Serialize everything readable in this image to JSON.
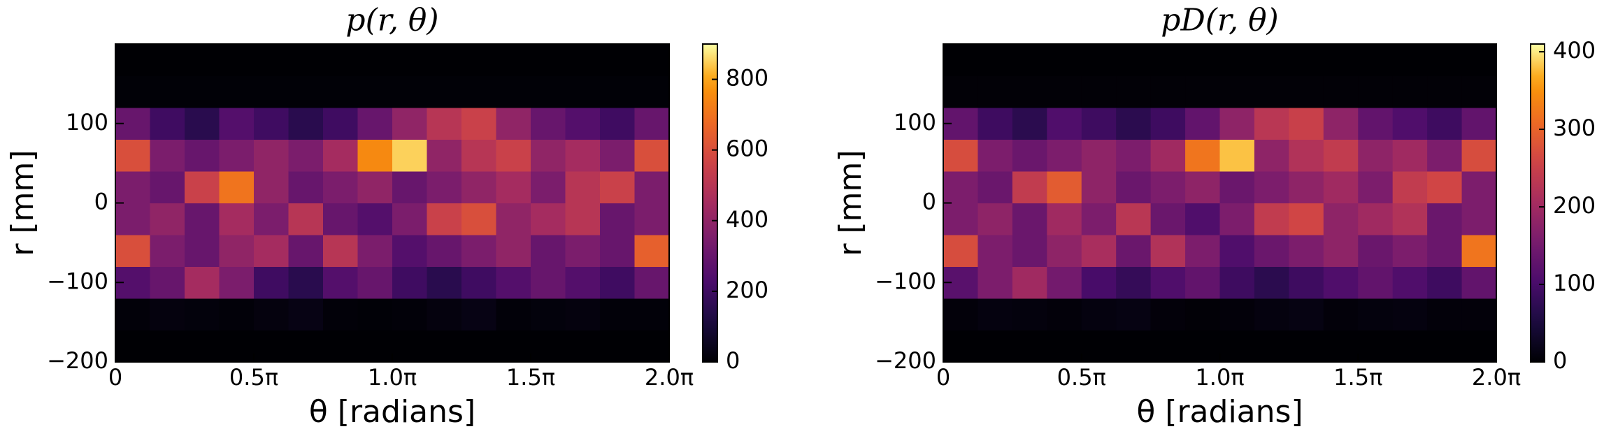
{
  "chart_data": [
    {
      "type": "heatmap",
      "title": "p(r, θ)",
      "xlabel": "θ [radians]",
      "ylabel": "r [mm]",
      "colormap": "inferno",
      "xbins": [
        0,
        0.3927,
        0.7854,
        1.1781,
        1.5708,
        1.9635,
        2.3562,
        2.7489,
        3.1416,
        3.5343,
        3.927,
        4.3197,
        4.7124,
        5.1051,
        5.4978,
        5.8905,
        6.2832
      ],
      "ybins": [
        -200,
        -160,
        -120,
        -80,
        -40,
        0,
        40,
        80,
        120,
        160,
        200
      ],
      "values": [
        [
          0,
          0,
          0,
          0,
          0,
          0,
          0,
          0,
          0,
          0,
          0,
          0,
          0,
          0,
          0,
          0
        ],
        [
          10,
          20,
          15,
          10,
          20,
          30,
          10,
          5,
          10,
          20,
          30,
          10,
          15,
          20,
          10,
          10
        ],
        [
          250,
          300,
          450,
          350,
          200,
          150,
          250,
          300,
          200,
          150,
          200,
          250,
          300,
          250,
          200,
          300
        ],
        [
          600,
          350,
          300,
          400,
          450,
          300,
          500,
          350,
          250,
          300,
          350,
          400,
          300,
          350,
          300,
          650
        ],
        [
          350,
          400,
          300,
          450,
          350,
          500,
          300,
          250,
          350,
          550,
          600,
          400,
          450,
          500,
          300,
          350
        ],
        [
          350,
          300,
          550,
          700,
          400,
          300,
          350,
          400,
          300,
          350,
          400,
          450,
          350,
          500,
          550,
          350
        ],
        [
          600,
          350,
          300,
          350,
          400,
          350,
          450,
          750,
          850,
          400,
          500,
          550,
          400,
          450,
          350,
          600
        ],
        [
          300,
          200,
          150,
          250,
          200,
          150,
          200,
          300,
          400,
          500,
          550,
          400,
          300,
          250,
          200,
          300
        ],
        [
          5,
          5,
          5,
          5,
          5,
          5,
          5,
          5,
          5,
          5,
          5,
          5,
          5,
          5,
          5,
          5
        ],
        [
          0,
          0,
          0,
          0,
          0,
          0,
          0,
          0,
          0,
          0,
          0,
          0,
          0,
          0,
          0,
          0
        ]
      ],
      "xlim": [
        0,
        6.2832
      ],
      "xticks": [
        0,
        {
          "value": 1.5708,
          "label": "0.5π"
        },
        {
          "value": 3.1416,
          "label": "1.0π"
        },
        {
          "value": 4.7124,
          "label": "1.5π"
        },
        {
          "value": 6.2832,
          "label": "2.0π"
        }
      ],
      "ylim": [
        -200,
        200
      ],
      "yticks": [
        {
          "value": -200,
          "label": "−200"
        },
        {
          "value": -100,
          "label": "−100"
        },
        0,
        100
      ],
      "clim": [
        0,
        900
      ],
      "cticks": [
        0,
        200,
        400,
        600,
        800
      ]
    },
    {
      "type": "heatmap",
      "title": "pD(r, θ)",
      "xlabel": "θ [radians]",
      "ylabel": "r [mm]",
      "colormap": "inferno",
      "xbins": [
        0,
        0.3927,
        0.7854,
        1.1781,
        1.5708,
        1.9635,
        2.3562,
        2.7489,
        3.1416,
        3.5343,
        3.927,
        4.3197,
        4.7124,
        5.1051,
        5.4978,
        5.8905,
        6.2832
      ],
      "ybins": [
        -200,
        -160,
        -120,
        -80,
        -40,
        0,
        40,
        80,
        120,
        160,
        200
      ],
      "values": [
        [
          0,
          0,
          0,
          0,
          0,
          0,
          0,
          0,
          0,
          0,
          0,
          0,
          0,
          0,
          0,
          0
        ],
        [
          5,
          10,
          8,
          5,
          10,
          12,
          5,
          3,
          5,
          10,
          12,
          5,
          8,
          10,
          5,
          5
        ],
        [
          120,
          160,
          200,
          150,
          100,
          80,
          110,
          130,
          90,
          70,
          90,
          110,
          130,
          110,
          90,
          130
        ],
        [
          270,
          160,
          140,
          180,
          210,
          140,
          220,
          160,
          110,
          140,
          160,
          180,
          140,
          160,
          140,
          320
        ],
        [
          160,
          180,
          140,
          200,
          160,
          230,
          140,
          110,
          160,
          240,
          260,
          180,
          200,
          220,
          140,
          160
        ],
        [
          160,
          140,
          240,
          290,
          180,
          140,
          160,
          180,
          140,
          160,
          180,
          200,
          160,
          240,
          260,
          160
        ],
        [
          270,
          160,
          140,
          160,
          180,
          160,
          200,
          320,
          380,
          180,
          220,
          240,
          180,
          200,
          160,
          270
        ],
        [
          130,
          90,
          70,
          110,
          90,
          70,
          90,
          130,
          180,
          230,
          250,
          180,
          130,
          110,
          90,
          130
        ],
        [
          3,
          3,
          3,
          3,
          3,
          3,
          3,
          3,
          3,
          3,
          3,
          3,
          3,
          3,
          3,
          3
        ],
        [
          0,
          0,
          0,
          0,
          0,
          0,
          0,
          0,
          0,
          0,
          0,
          0,
          0,
          0,
          0,
          0
        ]
      ],
      "xlim": [
        0,
        6.2832
      ],
      "xticks": [
        0,
        {
          "value": 1.5708,
          "label": "0.5π"
        },
        {
          "value": 3.1416,
          "label": "1.0π"
        },
        {
          "value": 4.7124,
          "label": "1.5π"
        },
        {
          "value": 6.2832,
          "label": "2.0π"
        }
      ],
      "ylim": [
        -200,
        200
      ],
      "yticks": [
        {
          "value": -200,
          "label": "−200"
        },
        {
          "value": -100,
          "label": "−100"
        },
        0,
        100
      ],
      "clim": [
        0,
        410
      ],
      "cticks": [
        0,
        100,
        200,
        300,
        400
      ]
    }
  ]
}
